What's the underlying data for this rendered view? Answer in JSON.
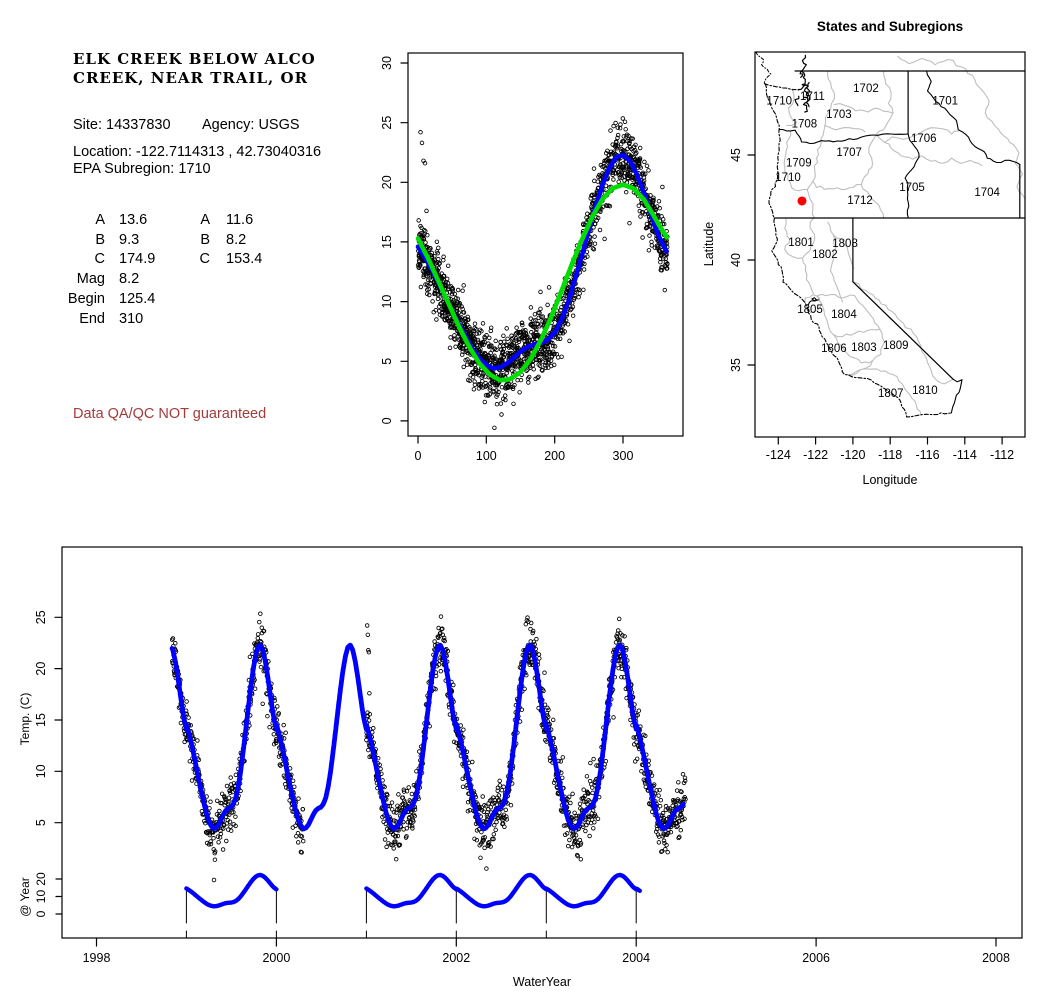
{
  "page": {
    "background": "#FFFFFF"
  },
  "header": {
    "title_line1": "ELK CREEK BELOW ALCO",
    "title_line2": "CREEK, NEAR TRAIL, OR",
    "site_label": "Site:",
    "site_value": "14337830",
    "agency_label": "Agency:",
    "agency_value": "USGS",
    "location_label": "Location:",
    "location_value": "-122.7114313 , 42.73040316",
    "epa_label": "EPA Subregion:",
    "epa_value": "1710",
    "parameters_left": [
      {
        "label": "A",
        "value": "13.6"
      },
      {
        "label": "B",
        "value": "9.3"
      },
      {
        "label": "C",
        "value": "174.9"
      },
      {
        "label": "Mag",
        "value": "8.2"
      },
      {
        "label": "Begin",
        "value": "125.4"
      },
      {
        "label": "End",
        "value": "310"
      }
    ],
    "parameters_right": [
      {
        "label": "A",
        "value": "11.6"
      },
      {
        "label": "B",
        "value": "8.2"
      },
      {
        "label": "C",
        "value": "153.4"
      }
    ],
    "warning_text": "Data QA/QC NOT guaranteed",
    "warning_color": "#A33B3B"
  },
  "chart_data": [
    {
      "id": "seasonal_fit",
      "type": "scatter",
      "title": "",
      "xlabel": "",
      "ylabel": "",
      "xticks": [
        0,
        100,
        200,
        300
      ],
      "yticks": [
        0,
        5,
        10,
        15,
        20,
        25,
        30
      ],
      "xlim": [
        -15,
        388
      ],
      "ylim": [
        -1.3,
        30.9
      ],
      "series": [
        {
          "name": "seasonal-fit-blue",
          "color": "#0000FF",
          "x": [
            0,
            10,
            20,
            30,
            40,
            50,
            60,
            70,
            80,
            90,
            100,
            110,
            120,
            130,
            140,
            150,
            160,
            170,
            180,
            190,
            200,
            210,
            220,
            230,
            240,
            250,
            260,
            270,
            280,
            290,
            300,
            310,
            320,
            330,
            340,
            350,
            357,
            365
          ],
          "y": [
            14.6,
            13.7,
            12.7,
            11.6,
            10.4,
            9.2,
            8.1,
            7.0,
            6.0,
            5.2,
            4.7,
            4.4,
            4.5,
            4.8,
            5.3,
            5.8,
            6.2,
            6.4,
            6.5,
            6.8,
            7.4,
            8.5,
            10.0,
            11.9,
            13.9,
            16.0,
            18.0,
            19.8,
            21.2,
            22.1,
            22.3,
            21.8,
            20.7,
            19.2,
            17.5,
            15.8,
            14.9,
            14.1
          ]
        },
        {
          "name": "seasonal-fit-green",
          "color": "#00DD00",
          "x": [
            0,
            15,
            30,
            45,
            60,
            75,
            90,
            105,
            120,
            135,
            150,
            165,
            180,
            195,
            210,
            225,
            240,
            255,
            270,
            285,
            300,
            315,
            330,
            345,
            355,
            365
          ],
          "y": [
            15.3,
            13.6,
            11.7,
            9.8,
            7.9,
            6.2,
            4.8,
            3.9,
            3.4,
            3.5,
            4.1,
            5.2,
            6.8,
            8.7,
            10.9,
            13.1,
            15.2,
            17.1,
            18.6,
            19.5,
            19.8,
            19.5,
            18.6,
            17.2,
            16.2,
            15.3
          ]
        }
      ],
      "scatter": {
        "marker": "open-circle",
        "color": "#000000",
        "noise_sd": 1.25,
        "seed": 1337,
        "low_tail_prob": 0.035,
        "water_year_ranges": [
          [
            1998.84,
            2000.3
          ],
          [
            2001.0,
            2004.55
          ]
        ]
      },
      "outliers": [
        {
          "t": 2001.01,
          "y": 24.2
        },
        {
          "t": 2001.016,
          "y": 23.3
        },
        {
          "t": 2001.022,
          "y": 21.8
        },
        {
          "t": 2001.028,
          "y": 21.6
        },
        {
          "t": 2001.034,
          "y": 17.6
        }
      ]
    },
    {
      "id": "map",
      "type": "map",
      "title": "States and Subregions",
      "xlabel": "Longitude",
      "ylabel": "Latitude",
      "xticks": [
        -124,
        -122,
        -120,
        -118,
        -116,
        -114,
        -112
      ],
      "yticks": [
        35,
        40,
        45
      ],
      "xlim": [
        -125.25,
        -110.77
      ],
      "ylim": [
        31.6,
        50.05
      ],
      "boundary_colors": {
        "state": "#000000",
        "subregion": "#BEBEBE"
      },
      "site_marker": {
        "lon": -122.73,
        "lat": 42.81,
        "color": "#FF0000"
      },
      "subregion_labels": [
        {
          "text": "1711",
          "lon": -122.17,
          "lat": 47.82
        },
        {
          "text": "1710",
          "lon": -123.95,
          "lat": 47.6
        },
        {
          "text": "1702",
          "lon": -119.3,
          "lat": 48.2
        },
        {
          "text": "1701",
          "lon": -115.05,
          "lat": 47.6
        },
        {
          "text": "1703",
          "lon": -120.75,
          "lat": 46.95
        },
        {
          "text": "1708",
          "lon": -122.6,
          "lat": 46.5
        },
        {
          "text": "1706",
          "lon": -116.2,
          "lat": 45.8
        },
        {
          "text": "1707",
          "lon": -120.2,
          "lat": 45.15
        },
        {
          "text": "1709",
          "lon": -122.9,
          "lat": 44.65
        },
        {
          "text": "1710",
          "lon": -123.48,
          "lat": 43.95
        },
        {
          "text": "1705",
          "lon": -116.83,
          "lat": 43.48
        },
        {
          "text": "1704",
          "lon": -112.8,
          "lat": 43.24
        },
        {
          "text": "1712",
          "lon": -119.62,
          "lat": 42.86
        },
        {
          "text": "1801",
          "lon": -122.78,
          "lat": 40.86
        },
        {
          "text": "1808",
          "lon": -120.42,
          "lat": 40.81
        },
        {
          "text": "1802",
          "lon": -121.5,
          "lat": 40.29
        },
        {
          "text": "1805",
          "lon": -122.3,
          "lat": 37.67
        },
        {
          "text": "1804",
          "lon": -120.48,
          "lat": 37.43
        },
        {
          "text": "1806",
          "lon": -121.02,
          "lat": 35.81
        },
        {
          "text": "1803",
          "lon": -119.41,
          "lat": 35.86
        },
        {
          "text": "1809",
          "lon": -117.7,
          "lat": 35.95
        },
        {
          "text": "1807",
          "lon": -117.97,
          "lat": 33.67
        },
        {
          "text": "1810",
          "lon": -116.14,
          "lat": 33.81
        }
      ]
    },
    {
      "id": "timeseries",
      "type": "line+scatter",
      "title": "",
      "xlabel": "WaterYear",
      "ylabel": "Temp. (C)",
      "xticks": [
        1998,
        2000,
        2002,
        2004,
        2006,
        2008
      ],
      "yticks": [
        5,
        10,
        15,
        20,
        25
      ],
      "xlim": [
        1997.6,
        2008.3
      ],
      "line": {
        "name": "fitted-series-blue",
        "color": "#0000FF",
        "t_range": [
          1998.84,
          2004.52
        ],
        "uses_series": "seasonal-fit-blue"
      },
      "scatter": {
        "marker": "open-circle",
        "color": "#000000",
        "ranges": [
          [
            1998.84,
            2000.3
          ],
          [
            2001.0,
            2004.55
          ]
        ]
      },
      "inner_year_ticks": [
        1999,
        2000,
        2001,
        2002,
        2003,
        2004
      ],
      "subpanel": {
        "ylabel": "@ Year",
        "yticks": [
          0,
          10,
          20
        ],
        "color": "#0000FF",
        "segments": [
          [
            1999.0,
            2000.0
          ],
          [
            2001.0,
            2004.04
          ]
        ],
        "year_marks": [
          1999,
          2000,
          2001,
          2002,
          2003,
          2004
        ]
      }
    }
  ]
}
